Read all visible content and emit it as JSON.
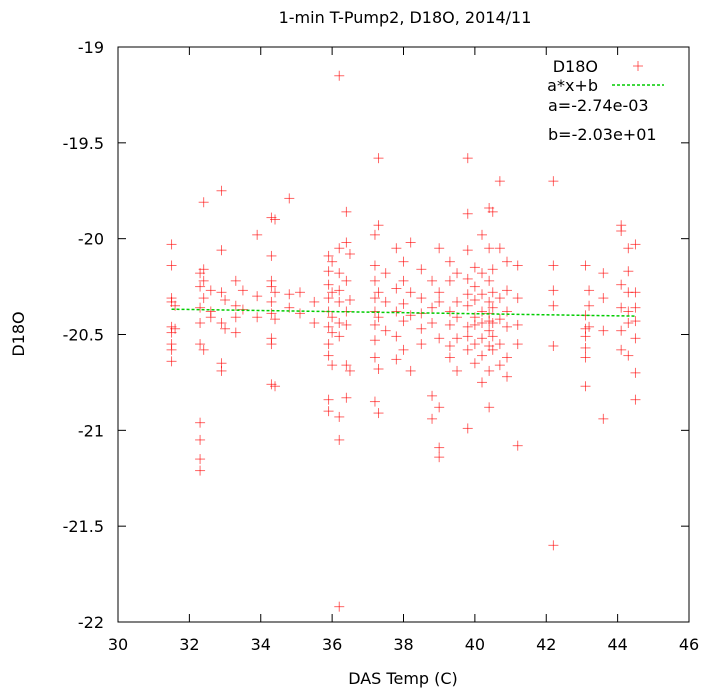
{
  "chart_data": {
    "type": "scatter",
    "title": "1-min T-Pump2, D18O, 2014/11",
    "xlabel": "DAS Temp (C)",
    "ylabel": "D18O",
    "xlim": [
      30,
      46
    ],
    "ylim": [
      -22,
      -19
    ],
    "x_ticks": [
      30,
      32,
      34,
      36,
      38,
      40,
      42,
      44,
      46
    ],
    "y_ticks": [
      -22,
      -21.5,
      -21,
      -20.5,
      -20,
      -19.5,
      -19
    ],
    "x_tick_labels": [
      "30",
      "32",
      "34",
      "36",
      "38",
      "40",
      "42",
      "44",
      "46"
    ],
    "y_tick_labels": [
      "-22",
      "-21.5",
      "-21",
      "-20.5",
      "-20",
      "-19.5",
      "-19"
    ],
    "grid": false,
    "legend_position": "top-right",
    "series": [
      {
        "name": "D18O",
        "kind": "points",
        "color": "#ff0000",
        "points": [
          [
            31.5,
            -20.03
          ],
          [
            31.5,
            -20.14
          ],
          [
            31.5,
            -20.31
          ],
          [
            31.5,
            -20.33
          ],
          [
            31.5,
            -20.46
          ],
          [
            31.5,
            -20.49
          ],
          [
            31.5,
            -20.55
          ],
          [
            31.5,
            -20.58
          ],
          [
            31.5,
            -20.64
          ],
          [
            31.6,
            -20.35
          ],
          [
            31.6,
            -20.47
          ],
          [
            32.3,
            -20.18
          ],
          [
            32.3,
            -20.25
          ],
          [
            32.3,
            -20.36
          ],
          [
            32.3,
            -20.44
          ],
          [
            32.3,
            -20.55
          ],
          [
            32.3,
            -20.96
          ],
          [
            32.3,
            -21.05
          ],
          [
            32.3,
            -21.15
          ],
          [
            32.3,
            -21.21
          ],
          [
            32.4,
            -19.81
          ],
          [
            32.4,
            -20.16
          ],
          [
            32.4,
            -20.22
          ],
          [
            32.4,
            -20.31
          ],
          [
            32.4,
            -20.58
          ],
          [
            32.6,
            -20.27
          ],
          [
            32.6,
            -20.41
          ],
          [
            32.6,
            -20.38
          ],
          [
            32.9,
            -19.75
          ],
          [
            32.9,
            -20.06
          ],
          [
            32.9,
            -20.28
          ],
          [
            32.9,
            -20.44
          ],
          [
            32.9,
            -20.65
          ],
          [
            32.9,
            -20.69
          ],
          [
            33.0,
            -20.32
          ],
          [
            33.0,
            -20.47
          ],
          [
            33.3,
            -20.22
          ],
          [
            33.3,
            -20.35
          ],
          [
            33.3,
            -20.41
          ],
          [
            33.3,
            -20.49
          ],
          [
            33.5,
            -20.27
          ],
          [
            33.5,
            -20.37
          ],
          [
            33.9,
            -19.98
          ],
          [
            33.9,
            -20.3
          ],
          [
            33.9,
            -20.41
          ],
          [
            34.3,
            -19.89
          ],
          [
            34.3,
            -20.09
          ],
          [
            34.3,
            -20.22
          ],
          [
            34.3,
            -20.25
          ],
          [
            34.3,
            -20.33
          ],
          [
            34.3,
            -20.39
          ],
          [
            34.3,
            -20.52
          ],
          [
            34.3,
            -20.55
          ],
          [
            34.3,
            -20.76
          ],
          [
            34.4,
            -19.9
          ],
          [
            34.4,
            -20.28
          ],
          [
            34.4,
            -20.42
          ],
          [
            34.4,
            -20.77
          ],
          [
            34.8,
            -19.79
          ],
          [
            34.8,
            -20.29
          ],
          [
            34.8,
            -20.36
          ],
          [
            35.1,
            -20.28
          ],
          [
            35.1,
            -20.39
          ],
          [
            35.5,
            -20.33
          ],
          [
            35.5,
            -20.44
          ],
          [
            35.9,
            -20.09
          ],
          [
            35.9,
            -20.17
          ],
          [
            35.9,
            -20.24
          ],
          [
            35.9,
            -20.31
          ],
          [
            35.9,
            -20.38
          ],
          [
            35.9,
            -20.46
          ],
          [
            35.9,
            -20.55
          ],
          [
            35.9,
            -20.61
          ],
          [
            35.9,
            -20.84
          ],
          [
            35.9,
            -20.9
          ],
          [
            36.0,
            -20.12
          ],
          [
            36.0,
            -20.28
          ],
          [
            36.0,
            -20.41
          ],
          [
            36.0,
            -20.49
          ],
          [
            36.0,
            -20.66
          ],
          [
            36.2,
            -19.15
          ],
          [
            36.2,
            -20.05
          ],
          [
            36.2,
            -20.18
          ],
          [
            36.2,
            -20.27
          ],
          [
            36.2,
            -20.33
          ],
          [
            36.2,
            -20.44
          ],
          [
            36.2,
            -20.51
          ],
          [
            36.2,
            -20.93
          ],
          [
            36.2,
            -21.05
          ],
          [
            36.2,
            -21.92
          ],
          [
            36.4,
            -19.86
          ],
          [
            36.4,
            -20.02
          ],
          [
            36.4,
            -20.22
          ],
          [
            36.4,
            -20.38
          ],
          [
            36.4,
            -20.45
          ],
          [
            36.4,
            -20.66
          ],
          [
            36.4,
            -20.83
          ],
          [
            36.5,
            -20.08
          ],
          [
            36.5,
            -20.32
          ],
          [
            36.5,
            -20.69
          ],
          [
            37.2,
            -19.98
          ],
          [
            37.2,
            -20.14
          ],
          [
            37.2,
            -20.22
          ],
          [
            37.2,
            -20.31
          ],
          [
            37.2,
            -20.38
          ],
          [
            37.2,
            -20.45
          ],
          [
            37.2,
            -20.53
          ],
          [
            37.2,
            -20.62
          ],
          [
            37.2,
            -20.85
          ],
          [
            37.3,
            -19.58
          ],
          [
            37.3,
            -19.93
          ],
          [
            37.3,
            -20.28
          ],
          [
            37.3,
            -20.41
          ],
          [
            37.3,
            -20.68
          ],
          [
            37.3,
            -20.91
          ],
          [
            37.5,
            -20.18
          ],
          [
            37.5,
            -20.33
          ],
          [
            37.5,
            -20.48
          ],
          [
            37.8,
            -20.05
          ],
          [
            37.8,
            -20.26
          ],
          [
            37.8,
            -20.38
          ],
          [
            37.8,
            -20.51
          ],
          [
            37.8,
            -20.63
          ],
          [
            38.0,
            -20.12
          ],
          [
            38.0,
            -20.22
          ],
          [
            38.0,
            -20.34
          ],
          [
            38.0,
            -20.43
          ],
          [
            38.0,
            -20.58
          ],
          [
            38.2,
            -20.02
          ],
          [
            38.2,
            -20.28
          ],
          [
            38.2,
            -20.4
          ],
          [
            38.2,
            -20.69
          ],
          [
            38.5,
            -20.16
          ],
          [
            38.5,
            -20.31
          ],
          [
            38.5,
            -20.39
          ],
          [
            38.5,
            -20.47
          ],
          [
            38.5,
            -20.55
          ],
          [
            38.8,
            -20.22
          ],
          [
            38.8,
            -20.36
          ],
          [
            38.8,
            -20.44
          ],
          [
            38.8,
            -20.82
          ],
          [
            38.8,
            -20.94
          ],
          [
            39.0,
            -20.05
          ],
          [
            39.0,
            -20.28
          ],
          [
            39.0,
            -20.33
          ],
          [
            39.0,
            -20.52
          ],
          [
            39.0,
            -20.88
          ],
          [
            39.0,
            -21.09
          ],
          [
            39.0,
            -21.14
          ],
          [
            39.3,
            -20.12
          ],
          [
            39.3,
            -20.22
          ],
          [
            39.3,
            -20.38
          ],
          [
            39.3,
            -20.45
          ],
          [
            39.3,
            -20.56
          ],
          [
            39.3,
            -20.62
          ],
          [
            39.5,
            -20.18
          ],
          [
            39.5,
            -20.33
          ],
          [
            39.5,
            -20.41
          ],
          [
            39.5,
            -20.52
          ],
          [
            39.5,
            -20.69
          ],
          [
            39.8,
            -19.58
          ],
          [
            39.8,
            -19.87
          ],
          [
            39.8,
            -20.06
          ],
          [
            39.8,
            -20.21
          ],
          [
            39.8,
            -20.29
          ],
          [
            39.8,
            -20.35
          ],
          [
            39.8,
            -20.46
          ],
          [
            39.8,
            -20.51
          ],
          [
            39.8,
            -20.58
          ],
          [
            39.8,
            -20.99
          ],
          [
            40.0,
            -20.15
          ],
          [
            40.0,
            -20.25
          ],
          [
            40.0,
            -20.32
          ],
          [
            40.0,
            -20.41
          ],
          [
            40.0,
            -20.45
          ],
          [
            40.0,
            -20.55
          ],
          [
            40.0,
            -20.65
          ],
          [
            40.2,
            -19.98
          ],
          [
            40.2,
            -20.18
          ],
          [
            40.2,
            -20.29
          ],
          [
            40.2,
            -20.38
          ],
          [
            40.2,
            -20.44
          ],
          [
            40.2,
            -20.52
          ],
          [
            40.2,
            -20.61
          ],
          [
            40.2,
            -20.75
          ],
          [
            40.4,
            -19.84
          ],
          [
            40.4,
            -20.05
          ],
          [
            40.4,
            -20.22
          ],
          [
            40.4,
            -20.33
          ],
          [
            40.4,
            -20.39
          ],
          [
            40.4,
            -20.43
          ],
          [
            40.4,
            -20.48
          ],
          [
            40.4,
            -20.56
          ],
          [
            40.4,
            -20.69
          ],
          [
            40.4,
            -20.88
          ],
          [
            40.5,
            -19.86
          ],
          [
            40.5,
            -20.16
          ],
          [
            40.5,
            -20.28
          ],
          [
            40.5,
            -20.36
          ],
          [
            40.5,
            -20.44
          ],
          [
            40.5,
            -20.51
          ],
          [
            40.5,
            -20.58
          ],
          [
            40.7,
            -19.7
          ],
          [
            40.7,
            -20.05
          ],
          [
            40.7,
            -20.31
          ],
          [
            40.7,
            -20.42
          ],
          [
            40.7,
            -20.55
          ],
          [
            40.7,
            -20.66
          ],
          [
            40.9,
            -20.12
          ],
          [
            40.9,
            -20.27
          ],
          [
            40.9,
            -20.38
          ],
          [
            40.9,
            -20.46
          ],
          [
            40.9,
            -20.62
          ],
          [
            40.9,
            -20.72
          ],
          [
            41.2,
            -20.14
          ],
          [
            41.2,
            -20.31
          ],
          [
            41.2,
            -20.45
          ],
          [
            41.2,
            -20.55
          ],
          [
            41.2,
            -21.08
          ],
          [
            42.2,
            -19.7
          ],
          [
            42.2,
            -20.14
          ],
          [
            42.2,
            -20.27
          ],
          [
            42.2,
            -20.35
          ],
          [
            42.2,
            -20.56
          ],
          [
            42.2,
            -21.6
          ],
          [
            43.1,
            -20.14
          ],
          [
            43.1,
            -20.4
          ],
          [
            43.1,
            -20.47
          ],
          [
            43.1,
            -20.51
          ],
          [
            43.1,
            -20.57
          ],
          [
            43.1,
            -20.62
          ],
          [
            43.1,
            -20.77
          ],
          [
            43.2,
            -20.27
          ],
          [
            43.2,
            -20.35
          ],
          [
            43.2,
            -20.46
          ],
          [
            43.6,
            -20.18
          ],
          [
            43.6,
            -20.31
          ],
          [
            43.6,
            -20.48
          ],
          [
            43.6,
            -20.94
          ],
          [
            44.1,
            -19.93
          ],
          [
            44.1,
            -19.96
          ],
          [
            44.1,
            -20.24
          ],
          [
            44.1,
            -20.36
          ],
          [
            44.1,
            -20.48
          ],
          [
            44.1,
            -20.58
          ],
          [
            44.3,
            -20.05
          ],
          [
            44.3,
            -20.17
          ],
          [
            44.3,
            -20.28
          ],
          [
            44.3,
            -20.38
          ],
          [
            44.3,
            -20.44
          ],
          [
            44.3,
            -20.61
          ],
          [
            44.5,
            -20.03
          ],
          [
            44.5,
            -20.28
          ],
          [
            44.5,
            -20.36
          ],
          [
            44.5,
            -20.43
          ],
          [
            44.5,
            -20.52
          ],
          [
            44.5,
            -20.7
          ],
          [
            44.5,
            -20.84
          ]
        ]
      },
      {
        "name": "a*x+b",
        "kind": "line",
        "color": "#00cc00",
        "x": [
          31.5,
          44.5
        ],
        "y": [
          -20.368,
          -20.404
        ]
      }
    ],
    "annotations": [
      "a=-2.74e-03",
      "b=-2.03e+01"
    ]
  }
}
